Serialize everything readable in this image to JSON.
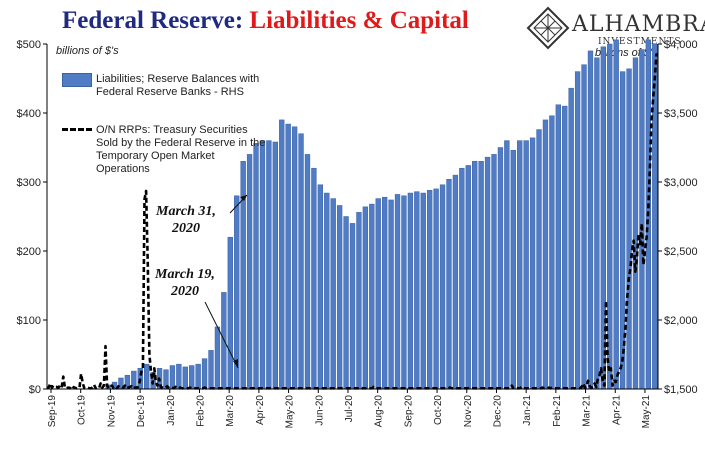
{
  "title": {
    "part1": "Federal Reserve:",
    "part2": "Liabilities & Capital"
  },
  "logo": {
    "name": "ALHAMBRA",
    "sub": "INVESTMENTS"
  },
  "units": {
    "left": "billions of $'s",
    "right": "billions of $'s"
  },
  "legend": {
    "bar_label": [
      "Liabilities; Reserve Balances with",
      "Federal Reserve Banks - RHS"
    ],
    "line_label": [
      "O/N RRPs: Treasury Securities",
      "Sold by the Federal Reserve in the",
      "Temporary Open Market",
      "Operations"
    ]
  },
  "annotations": {
    "mar31": [
      "March 31,",
      "2020"
    ],
    "mar19": [
      "March 19,",
      "2020"
    ]
  },
  "colors": {
    "bar": "#4f7cc4",
    "bar_edge": "#3b62a5",
    "line": "#000000",
    "title1": "#1f2a80",
    "title2": "#e01a1a"
  },
  "chart_data": {
    "type": "bar+line",
    "x_tick_labels": [
      "Sep-19",
      "Oct-19",
      "Nov-19",
      "Dec-19",
      "Jan-20",
      "Feb-20",
      "Mar-20",
      "Apr-20",
      "May-20",
      "Jun-20",
      "Jul-20",
      "Aug-20",
      "Sep-20",
      "Oct-20",
      "Nov-20",
      "Dec-20",
      "Jan-21",
      "Feb-21",
      "Mar-21",
      "Apr-21",
      "May-21"
    ],
    "y_left": {
      "ticks": [
        "$0",
        "$100",
        "$200",
        "$300",
        "$400",
        "$500"
      ],
      "range": [
        0,
        500
      ]
    },
    "y_right": {
      "ticks": [
        "$1,500",
        "$2,000",
        "$2,500",
        "$3,000",
        "$3,500",
        "$4,000"
      ],
      "range": [
        1500,
        4000
      ]
    },
    "series": [
      {
        "name": "Liabilities; Reserve Balances with Federal Reserve Banks - RHS",
        "type": "bar",
        "axis": "right",
        "values": [
          1380,
          1390,
          1400,
          1400,
          1420,
          1430,
          1460,
          1480,
          1500,
          1530,
          1550,
          1580,
          1600,
          1630,
          1650,
          1680,
          1620,
          1650,
          1640,
          1670,
          1680,
          1660,
          1670,
          1680,
          1720,
          1780,
          1950,
          2200,
          2600,
          2900,
          3150,
          3200,
          3280,
          3300,
          3300,
          3290,
          3450,
          3420,
          3400,
          3350,
          3200,
          3100,
          2980,
          2920,
          2880,
          2830,
          2750,
          2700,
          2780,
          2820,
          2840,
          2880,
          2890,
          2870,
          2910,
          2900,
          2920,
          2930,
          2920,
          2940,
          2950,
          2980,
          3020,
          3050,
          3100,
          3120,
          3150,
          3150,
          3180,
          3200,
          3250,
          3300,
          3230,
          3300,
          3300,
          3320,
          3380,
          3450,
          3480,
          3560,
          3550,
          3680,
          3800,
          3850,
          3950,
          3900,
          3980,
          4000,
          4030,
          3800,
          3820,
          3900,
          3960,
          4030,
          4000
        ]
      },
      {
        "name": "O/N RRPs: Treasury Securities Sold by the Federal Reserve in the Temporary Open Market Operations",
        "type": "line",
        "axis": "left",
        "values": [
          1,
          2,
          8,
          2,
          5,
          3,
          3,
          2,
          5,
          2,
          18,
          2,
          1,
          2,
          1,
          5,
          3,
          2,
          1,
          1,
          2,
          22,
          8,
          1,
          2,
          2,
          1,
          1,
          2,
          6,
          1,
          2,
          1,
          8,
          2,
          5,
          62,
          5,
          1,
          2,
          5,
          1,
          3,
          1,
          4,
          2,
          3,
          2,
          5,
          1,
          2,
          3,
          4,
          1,
          2,
          2,
          3,
          10,
          25,
          30,
          275,
          287,
          180,
          50,
          25,
          8,
          30,
          10,
          5,
          15,
          3,
          2,
          1,
          2,
          4,
          1,
          1,
          2,
          1,
          3,
          1,
          1,
          2,
          1,
          1,
          1,
          1,
          1,
          2,
          1,
          2,
          1,
          1,
          1,
          1,
          1,
          1,
          2,
          1,
          1,
          1,
          1,
          1,
          1,
          1,
          1,
          1,
          1,
          1,
          1,
          1,
          1,
          1,
          1,
          1,
          1,
          1,
          1,
          1,
          1,
          1,
          1,
          1,
          1,
          1,
          1,
          1,
          1,
          1,
          1,
          1,
          1,
          1,
          1,
          1,
          1,
          1,
          1,
          1,
          1,
          1,
          1,
          1,
          1,
          1,
          1,
          1,
          1,
          1,
          1,
          1,
          1,
          1,
          1,
          1,
          1,
          1,
          1,
          1,
          1,
          1,
          1,
          1,
          1,
          1,
          1,
          1,
          1,
          1,
          1,
          1,
          1,
          1,
          1,
          1,
          1,
          1,
          1,
          1,
          1,
          1,
          1,
          1,
          1,
          1,
          1,
          1,
          1,
          1,
          1,
          1,
          1,
          1,
          2,
          1,
          1,
          1,
          1,
          1,
          1,
          1,
          3,
          1,
          1,
          1,
          1,
          1,
          1,
          1,
          1,
          1,
          1,
          1,
          1,
          1,
          1,
          1,
          1,
          1,
          1,
          1,
          1,
          1,
          1,
          1,
          1,
          1,
          1,
          1,
          1,
          1,
          1,
          1,
          1,
          1,
          1,
          1,
          1,
          1,
          1,
          1,
          1,
          1,
          1,
          1,
          1,
          1,
          1,
          2,
          1,
          1,
          1,
          1,
          1,
          1,
          1,
          1,
          1,
          1,
          1,
          1,
          1,
          1,
          1,
          1,
          1,
          1,
          1,
          1,
          1,
          1,
          1,
          1,
          1,
          1,
          1,
          1,
          1,
          1,
          1,
          1,
          1,
          1,
          1,
          1,
          1,
          5,
          1,
          2,
          1,
          1,
          1,
          3,
          1,
          1,
          1,
          1,
          1,
          1,
          1,
          1,
          1,
          1,
          1,
          1,
          2,
          1,
          1,
          1,
          2,
          1,
          2,
          1,
          1,
          1,
          1,
          1,
          1,
          1,
          1,
          1,
          1,
          1,
          1,
          1,
          1,
          1,
          1,
          1,
          3,
          8,
          2,
          3,
          12,
          4,
          2,
          3,
          8,
          3,
          15,
          20,
          30,
          10,
          5,
          128,
          45,
          25,
          30,
          5,
          12,
          10,
          20,
          25,
          30,
          40,
          60,
          90,
          130,
          160,
          175,
          200,
          215,
          170,
          190,
          225,
          210,
          240,
          180,
          200,
          220,
          260,
          320,
          390,
          420,
          450,
          485,
          485
        ]
      }
    ]
  }
}
